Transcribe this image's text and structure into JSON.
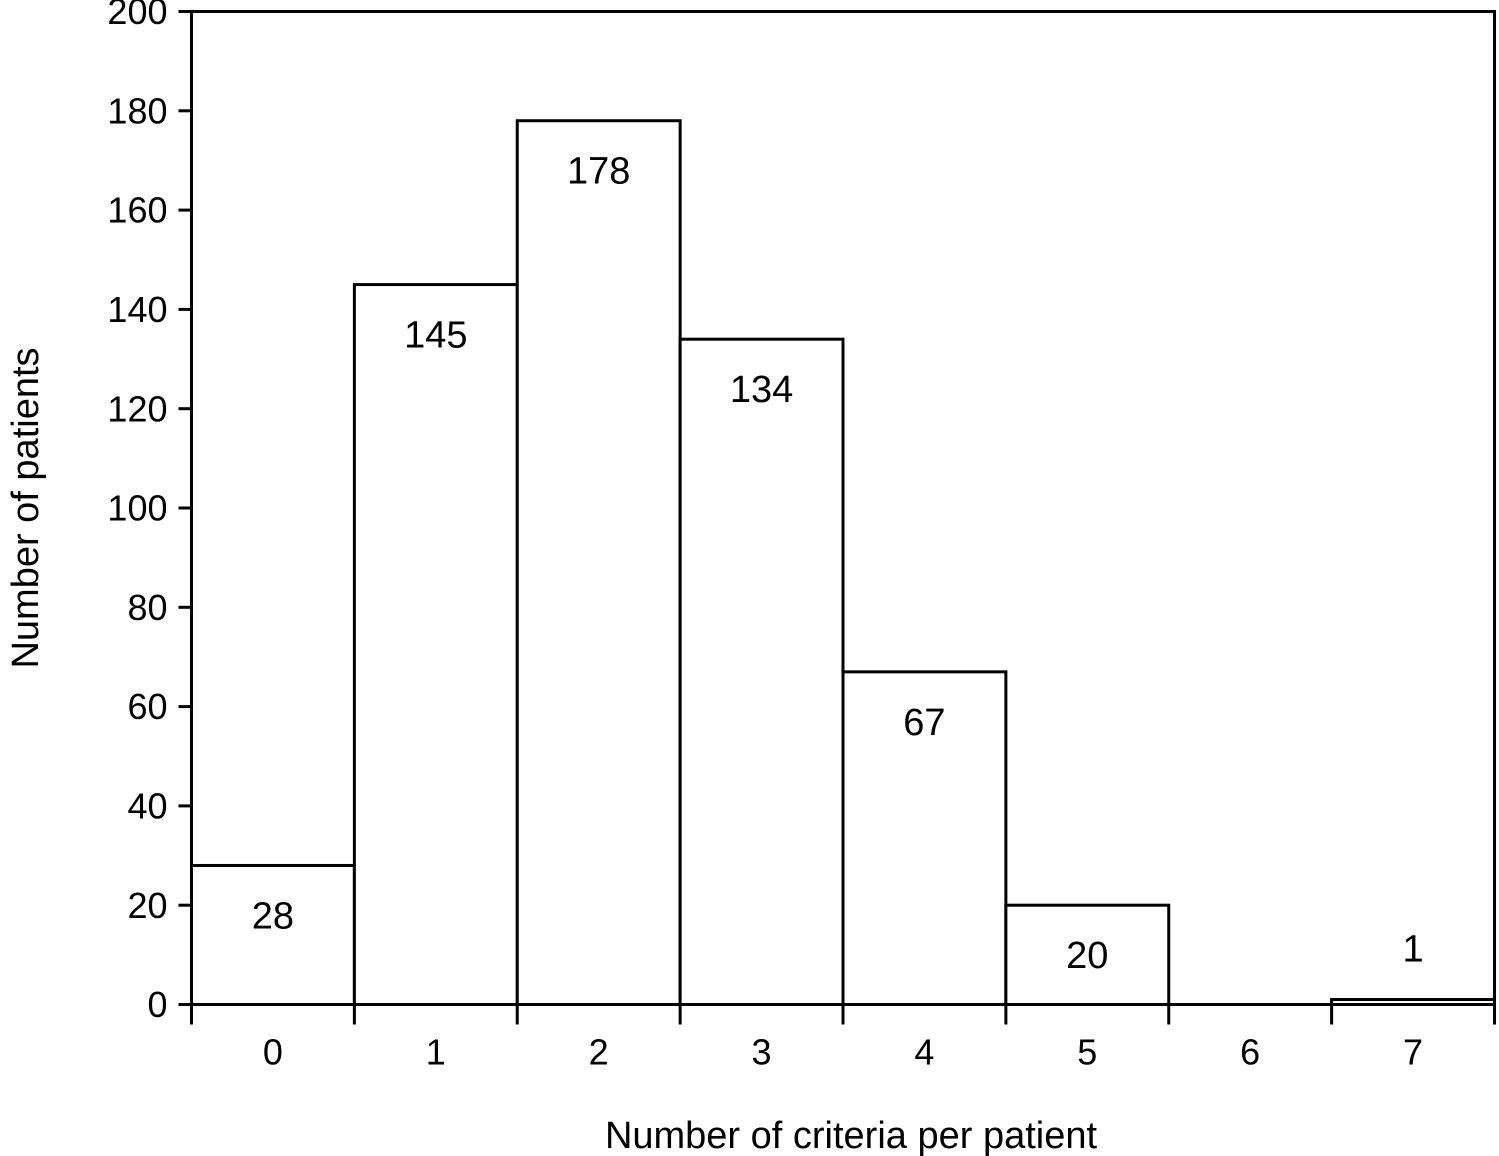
{
  "chart_data": {
    "type": "bar",
    "subtype": "histogram-style-flush-bars",
    "title": "",
    "xlabel": "Number of criteria per patient",
    "ylabel": "Number of patients",
    "categories": [
      "0",
      "1",
      "2",
      "3",
      "4",
      "5",
      "6",
      "7"
    ],
    "values": [
      28,
      145,
      178,
      134,
      67,
      20,
      0,
      1
    ],
    "data_labels": [
      "28",
      "145",
      "178",
      "134",
      "67",
      "20",
      "",
      "1"
    ],
    "ylim": [
      0,
      200
    ],
    "ytick_step": 20,
    "ytick_labels": [
      "0",
      "20",
      "40",
      "60",
      "80",
      "100",
      "120",
      "140",
      "160",
      "180",
      "200"
    ],
    "grid": false,
    "legend": "none",
    "plot_border": "full-box",
    "colors": {
      "bar_fill": "#ffffff",
      "bar_stroke": "#000000",
      "axis": "#000000",
      "text": "#000000",
      "background": "#ffffff"
    }
  }
}
